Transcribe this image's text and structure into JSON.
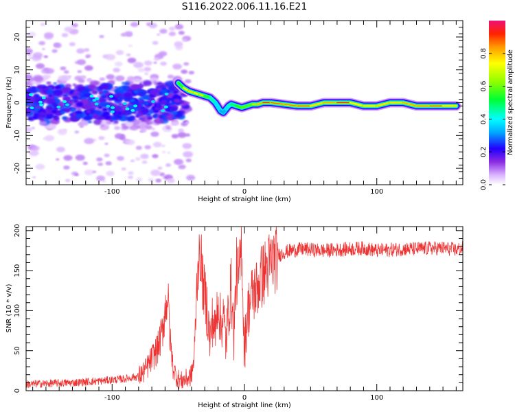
{
  "title": "S116.2022.006.11.16.E21",
  "chart_data": [
    {
      "type": "heatmap",
      "xlabel": "Height of straight line (km)",
      "ylabel": "Frequency (Hz)",
      "xlim": [
        -165,
        165
      ],
      "ylim": [
        -25,
        25
      ],
      "xticks": [
        -100,
        0,
        100
      ],
      "yticks": [
        -20,
        -10,
        0,
        10,
        20
      ],
      "xtick_labels": [
        "-100",
        "0",
        "100"
      ],
      "ytick_labels": [
        "-20",
        "-10",
        "0",
        "10",
        "20"
      ],
      "colorbar": {
        "label": "Normalized spectral amplitude",
        "range": [
          0,
          1
        ],
        "ticks": [
          "0.0",
          "0.2",
          "0.4",
          "0.6",
          "0.8"
        ],
        "tick_values": [
          0,
          0.2,
          0.4,
          0.6,
          0.8
        ]
      },
      "ridge": {
        "x": [
          -50,
          -46,
          -42,
          -38,
          -34,
          -30,
          -26,
          -22,
          -18,
          -16,
          -14,
          -12,
          -10,
          -6,
          -2,
          2,
          6,
          10,
          14,
          20,
          30,
          40,
          50,
          60,
          70,
          80,
          90,
          100,
          110,
          120,
          130,
          140,
          150,
          160
        ],
        "frequency": [
          6,
          4.5,
          3.5,
          3,
          2.5,
          2,
          1.5,
          0,
          -2.5,
          -3,
          -2,
          -1,
          -0.5,
          -1,
          -1.5,
          -1,
          -0.5,
          -0.5,
          0,
          0,
          -0.5,
          -1,
          -1,
          0,
          0,
          0,
          -1,
          -1,
          0,
          0,
          -1,
          -1,
          -1,
          -1
        ],
        "amplitude": [
          0.5,
          0.6,
          0.85,
          0.7,
          0.8,
          0.6,
          0.5,
          0.4,
          0.35,
          0.3,
          0.35,
          0.4,
          0.45,
          0.5,
          0.6,
          0.55,
          0.6,
          0.75,
          0.9,
          0.95,
          0.8,
          0.9,
          0.85,
          0.7,
          0.95,
          0.9,
          0.6,
          0.85,
          0.7,
          0.85,
          0.8,
          0.9,
          0.85,
          0.7
        ]
      }
    },
    {
      "type": "line",
      "xlabel": "Height of straight line (km)",
      "ylabel": "SNR (10 * v/v)",
      "xlim": [
        -165,
        165
      ],
      "ylim": [
        0,
        205
      ],
      "xticks": [
        -100,
        0,
        100
      ],
      "yticks": [
        0,
        50,
        100,
        150,
        200
      ],
      "xtick_labels": [
        "-100",
        "0",
        "100"
      ],
      "ytick_labels": [
        "0",
        "50",
        "100",
        "150",
        "200"
      ],
      "color": "#ee3333",
      "series": [
        {
          "x": [
            -165,
            -150,
            -130,
            -110,
            -90,
            -80,
            -75,
            -70,
            -65,
            -62,
            -60,
            -58,
            -56,
            -54,
            -52,
            -50,
            -48,
            -45,
            -42,
            -40,
            -38,
            -36,
            -35,
            -34,
            -33,
            -32,
            -31,
            -30,
            -28,
            -26,
            -24,
            -22,
            -20,
            -18,
            -16,
            -14,
            -12,
            -10,
            -8,
            -6,
            -4,
            -3,
            -2,
            -1,
            0,
            2,
            4,
            6,
            8,
            10,
            12,
            14,
            16,
            18,
            20,
            25,
            30,
            35,
            40,
            45,
            50,
            60,
            70,
            80,
            90,
            100,
            110,
            120,
            130,
            140,
            150,
            160,
            165
          ],
          "values": [
            8,
            9,
            10,
            12,
            15,
            18,
            25,
            40,
            55,
            75,
            100,
            120,
            60,
            30,
            20,
            15,
            12,
            14,
            16,
            20,
            40,
            130,
            175,
            150,
            180,
            140,
            130,
            120,
            100,
            60,
            90,
            70,
            120,
            80,
            95,
            60,
            100,
            130,
            70,
            150,
            140,
            160,
            190,
            100,
            50,
            95,
            110,
            120,
            125,
            130,
            140,
            145,
            150,
            155,
            160,
            168,
            173,
            175,
            176,
            177,
            176,
            175,
            176,
            177,
            178,
            175,
            176,
            177,
            177,
            178,
            178,
            176,
            178
          ]
        }
      ]
    }
  ]
}
